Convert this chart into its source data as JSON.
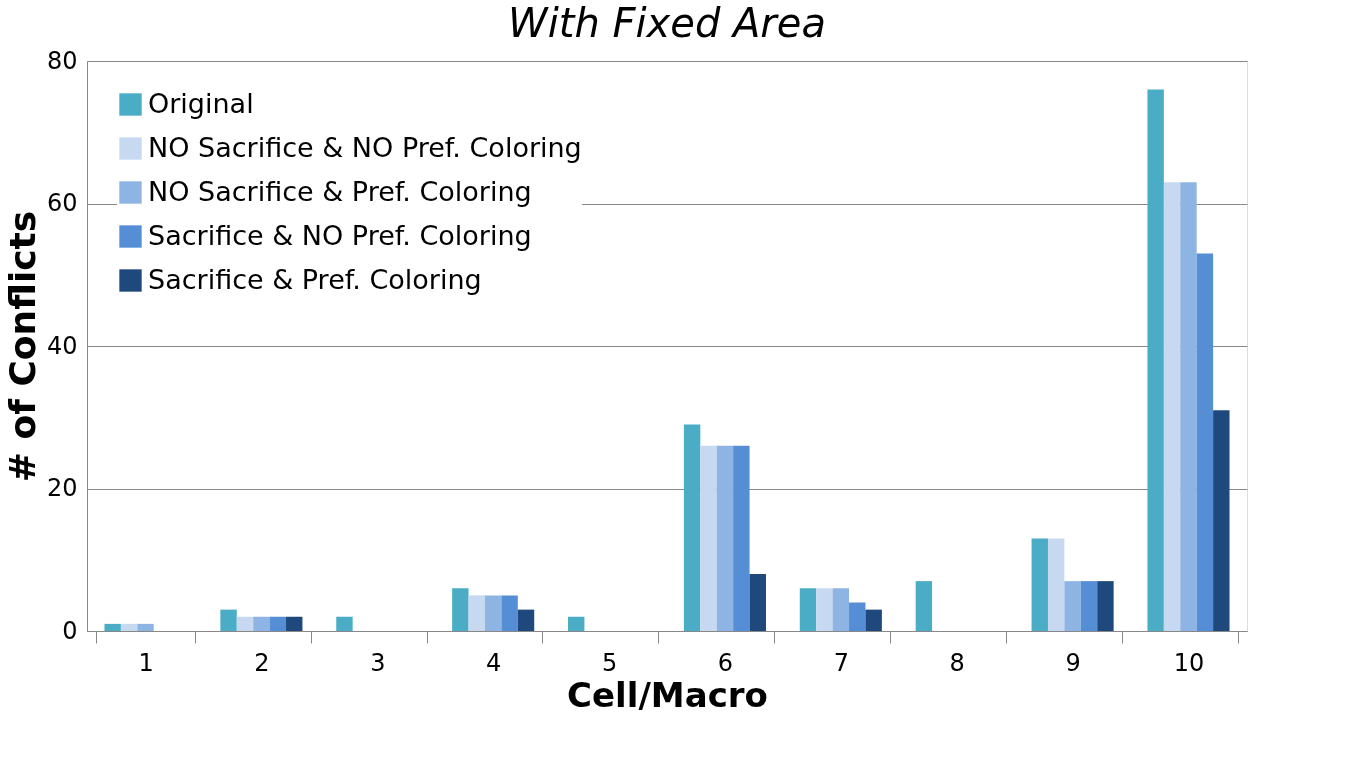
{
  "chart_data": {
    "type": "bar",
    "title": "With Fixed Area",
    "xlabel": "Cell/Macro",
    "ylabel": "# of Conflicts",
    "categories": [
      "1",
      "2",
      "3",
      "4",
      "5",
      "6",
      "7",
      "8",
      "9",
      "10"
    ],
    "series": [
      {
        "name": "Original",
        "color": "#4bacc6",
        "values": [
          1,
          3,
          2,
          6,
          2,
          29,
          6,
          7,
          13,
          76
        ]
      },
      {
        "name": "NO Sacrifice & NO Pref. Coloring",
        "color": "#c6d9f1",
        "values": [
          1,
          2,
          0,
          5,
          0,
          26,
          6,
          0,
          13,
          63
        ]
      },
      {
        "name": "NO Sacrifice & Pref. Coloring",
        "color": "#8eb4e3",
        "values": [
          1,
          2,
          0,
          5,
          0,
          26,
          6,
          0,
          7,
          63
        ]
      },
      {
        "name": "Sacrifice & NO Pref. Coloring",
        "color": "#558ed5",
        "values": [
          0,
          2,
          0,
          5,
          0,
          26,
          4,
          0,
          7,
          53
        ]
      },
      {
        "name": "Sacrifice & Pref. Coloring",
        "color": "#1f497d",
        "values": [
          0,
          2,
          0,
          3,
          0,
          8,
          3,
          0,
          7,
          31
        ]
      }
    ],
    "ylim": [
      0,
      80
    ],
    "yticks": [
      0,
      20,
      40,
      60,
      80
    ],
    "grid": "y",
    "legend": "top left"
  }
}
